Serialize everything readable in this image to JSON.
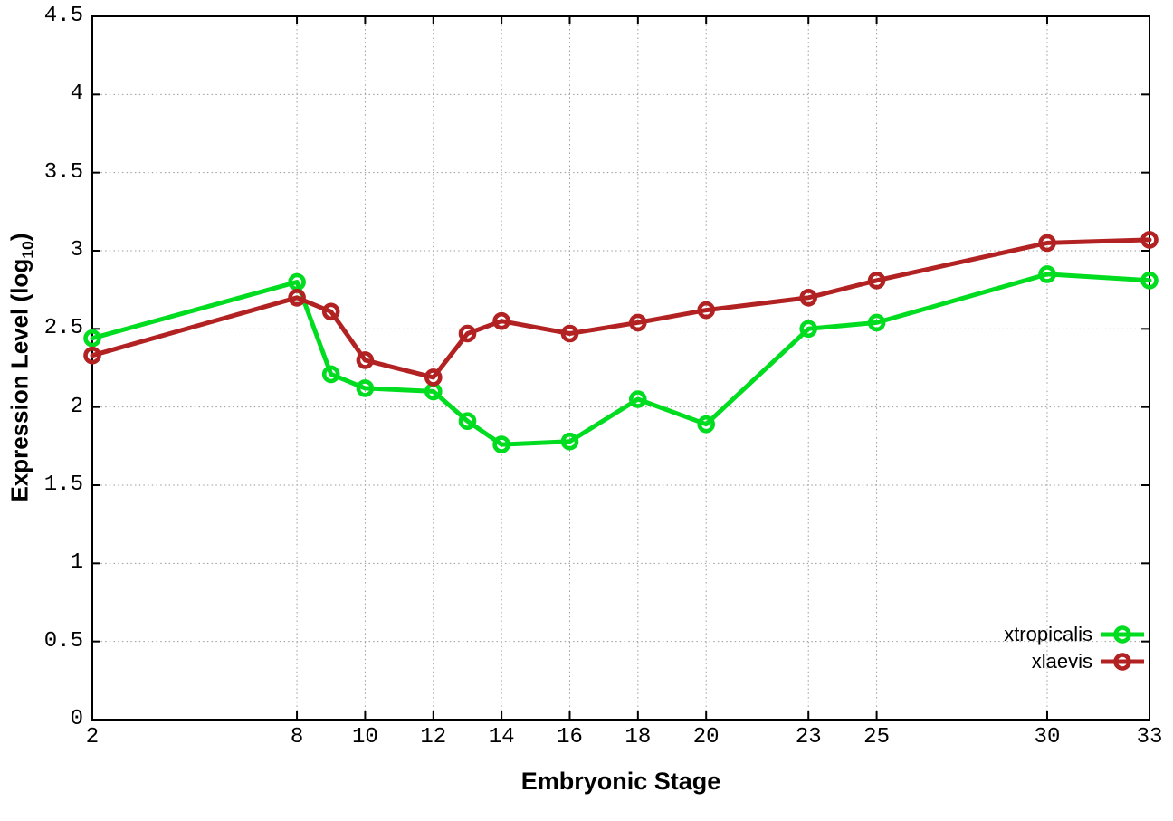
{
  "chart_data": {
    "type": "line",
    "title": "",
    "xlabel": "Embryonic Stage",
    "ylabel": "Expression Level (log10)",
    "ylabel_parts": {
      "main": "Expression Level (log",
      "sub": "10",
      "close": ")"
    },
    "xlim": [
      2,
      33
    ],
    "ylim": [
      0,
      4.5
    ],
    "grid": true,
    "legend_position": "bottom-right",
    "background": "#ffffff",
    "axis_color": "#000000",
    "text_color": "#000000",
    "grid_color": "#9a9a9a",
    "x_ticks": [
      2,
      8,
      10,
      12,
      14,
      16,
      18,
      20,
      23,
      25,
      30,
      33
    ],
    "y_ticks": [
      0,
      0.5,
      1,
      1.5,
      2,
      2.5,
      3,
      3.5,
      4,
      4.5
    ],
    "y_tick_labels": [
      "0",
      "0.5",
      "1",
      "1.5",
      "2",
      "2.5",
      "3",
      "3.5",
      "4",
      "4.5"
    ],
    "x": [
      2,
      8,
      9,
      10,
      12,
      13,
      14,
      16,
      18,
      20,
      23,
      25,
      30,
      33
    ],
    "series": [
      {
        "name": "xtropicalis",
        "color": "#00DC20",
        "values": [
          2.44,
          2.8,
          2.21,
          2.12,
          2.1,
          1.91,
          1.76,
          1.78,
          2.05,
          1.89,
          2.5,
          2.54,
          2.85,
          2.81
        ]
      },
      {
        "name": "xlaevis",
        "color": "#B22222",
        "values": [
          2.33,
          2.7,
          2.61,
          2.3,
          2.19,
          2.47,
          2.55,
          2.47,
          2.54,
          2.62,
          2.7,
          2.81,
          3.05,
          3.07
        ]
      }
    ]
  }
}
